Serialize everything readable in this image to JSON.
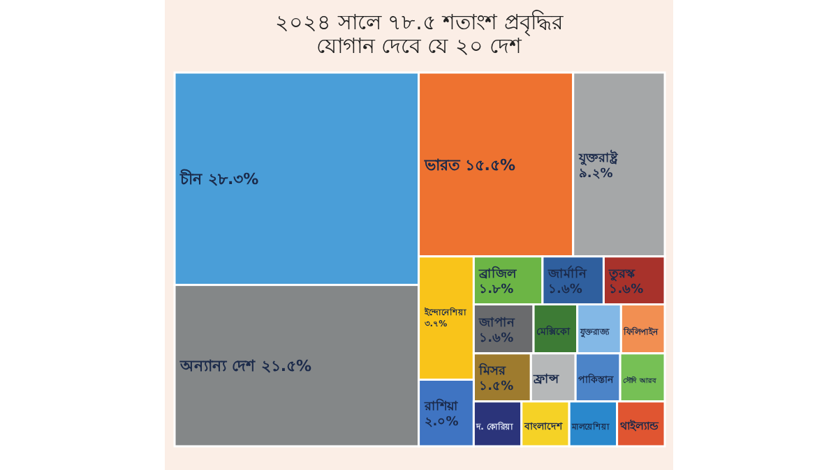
{
  "chart_data": {
    "type": "other",
    "title": "২০২৪ সালে ৭৮.৫ শতাংশ প্রবৃদ্ধির যোগান দেবে যে ২০ দেশ",
    "categories": [
      "চীন",
      "ভারত",
      "যুক্তরাষ্ট্র",
      "অন্যান্য দেশ",
      "ইন্দোনেশিয়া",
      "ব্রাজিল",
      "জার্মানি",
      "তুরস্ক",
      "জাপান",
      "মিসর",
      "রাশিয়া",
      "মেক্সিকো",
      "যুক্তরাজ্য",
      "ফিলিপাইন",
      "ফ্রান্স",
      "পাকিস্তান",
      "সৌদি আরব",
      "দ. কোরিয়া",
      "বাংলাদেশ",
      "মালয়েশিয়া",
      "থাইল্যান্ড"
    ],
    "values": [
      28.3,
      15.5,
      9.2,
      21.5,
      3.7,
      1.8,
      1.6,
      1.6,
      1.6,
      1.5,
      2.0,
      null,
      null,
      null,
      null,
      null,
      null,
      null,
      null,
      null,
      null
    ],
    "value_labels": [
      "২৮.৩%",
      "১৫.৫%",
      "৯.২%",
      "২১.৫%",
      "৩.৭%",
      "১.৮%",
      "১.৬%",
      "১.৬%",
      "১.৬%",
      "১.৫%",
      "২.০%",
      null,
      null,
      null,
      null,
      null,
      null,
      null,
      null,
      null,
      null
    ],
    "colors": [
      "#4a9ed8",
      "#ee7230",
      "#a5a7a8",
      "#848788",
      "#f9c41a",
      "#6cb545",
      "#2f5f9e",
      "#a8322b",
      "#6a6b6d",
      "#9e7b2e",
      "#3f74c2",
      "#3d7b35",
      "#83b8e6",
      "#f28f52",
      "#b6b8b9",
      "#4c84c8",
      "#76c055",
      "#2b347a",
      "#f5d226",
      "#2a88cc",
      "#e05531"
    ]
  }
}
